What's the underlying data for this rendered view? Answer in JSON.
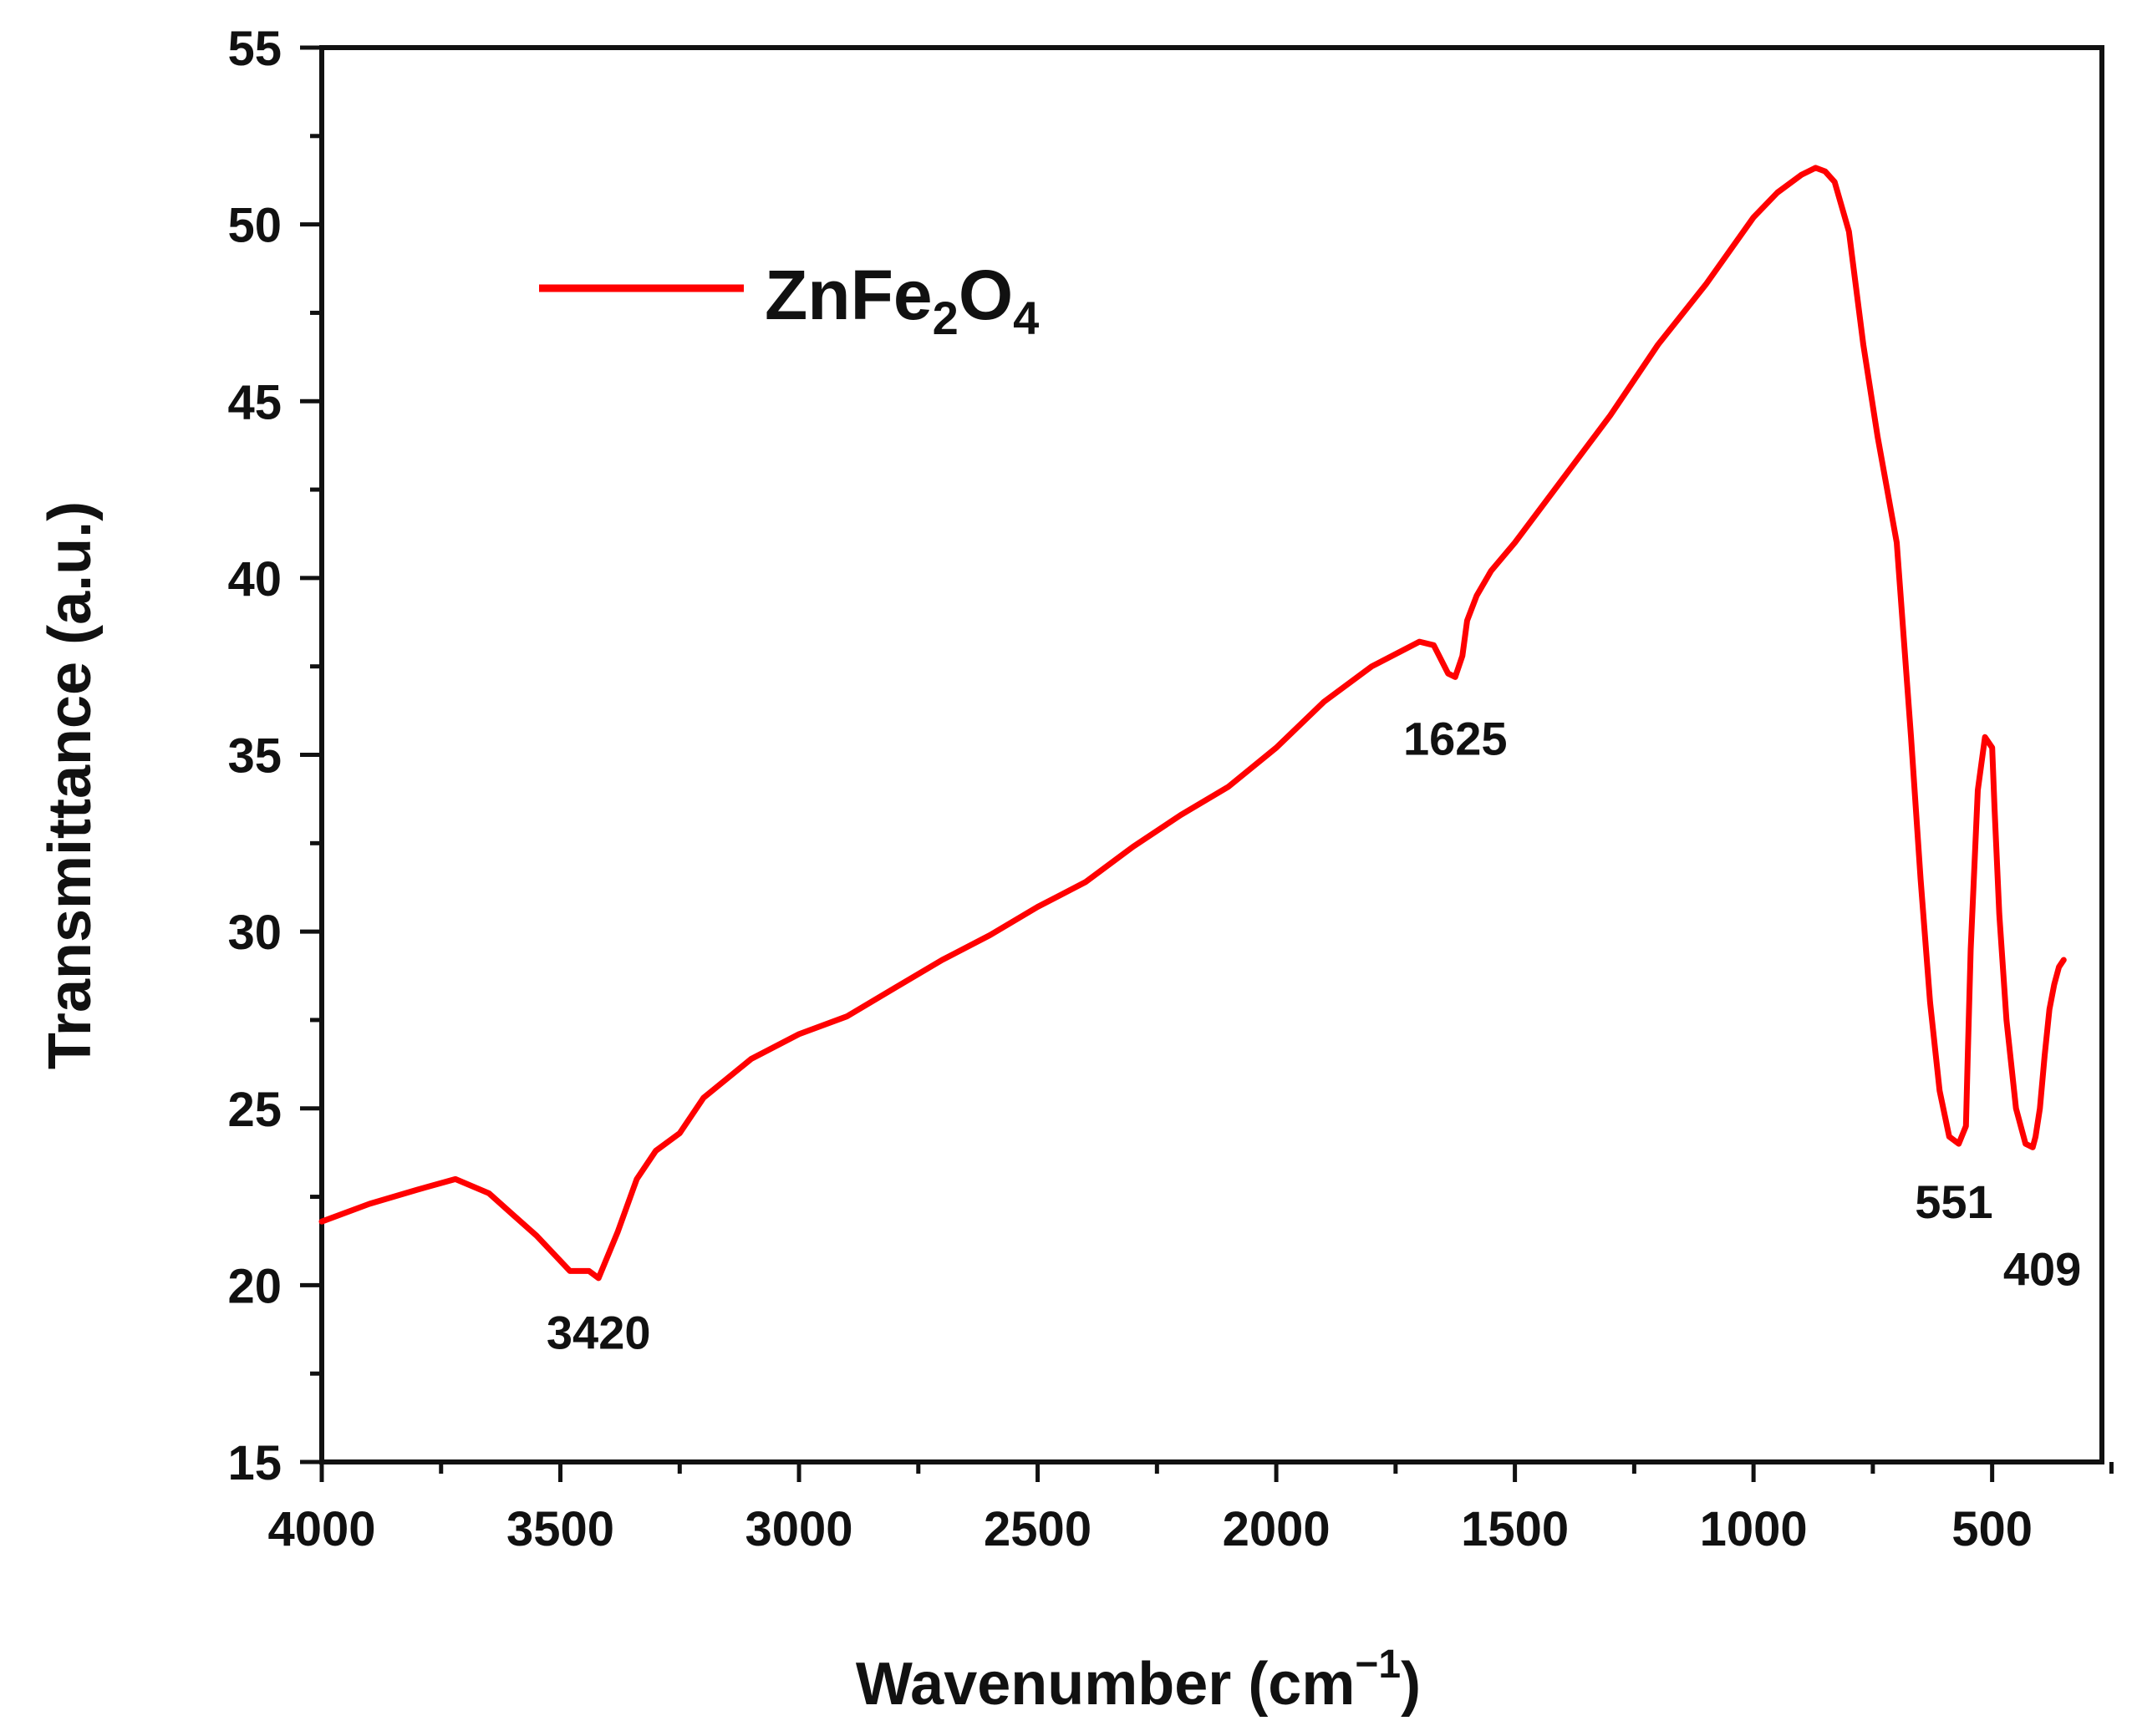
{
  "chart_data": {
    "type": "line",
    "title": "",
    "xlabel": "Wavenumber (cm",
    "xlabel_sup": "−1",
    "xlabel_close": ")",
    "ylabel": "Transmittance (a.u.)",
    "xlim": [
      4000,
      270
    ],
    "ylim": [
      15,
      55
    ],
    "x_ticks": [
      4000,
      3500,
      3000,
      2500,
      2000,
      1500,
      1000,
      500
    ],
    "y_ticks": [
      15,
      20,
      25,
      30,
      35,
      40,
      45,
      50,
      55
    ],
    "x_tick_labels": [
      "4000",
      "3500",
      "3000",
      "2500",
      "2000",
      "1500",
      "1000",
      "500"
    ],
    "y_tick_labels": [
      "15",
      "20",
      "25",
      "30",
      "35",
      "40",
      "45",
      "50",
      "55"
    ],
    "legend": {
      "position": "top-left",
      "label_main": "ZnFe",
      "label_sub1": "2",
      "label_mid": "O",
      "label_sub2": "4",
      "color": "#ff0000"
    },
    "series": [
      {
        "name": "ZnFe2O4",
        "color": "#ff0000",
        "x": [
          4000,
          3900,
          3800,
          3720,
          3650,
          3600,
          3550,
          3480,
          3440,
          3420,
          3380,
          3340,
          3300,
          3250,
          3200,
          3100,
          3000,
          2900,
          2800,
          2700,
          2600,
          2500,
          2400,
          2300,
          2200,
          2100,
          2000,
          1900,
          1800,
          1700,
          1670,
          1640,
          1625,
          1610,
          1600,
          1580,
          1550,
          1500,
          1400,
          1300,
          1200,
          1100,
          1000,
          950,
          900,
          870,
          850,
          830,
          800,
          770,
          740,
          700,
          670,
          650,
          630,
          610,
          590,
          570,
          555,
          551,
          545,
          530,
          515,
          500,
          495,
          485,
          470,
          450,
          430,
          415,
          409,
          400,
          390,
          380,
          370,
          360,
          350
        ],
        "y": [
          21.8,
          22.3,
          22.7,
          23.0,
          22.6,
          22.0,
          21.4,
          20.4,
          20.4,
          20.2,
          21.5,
          23.0,
          23.8,
          24.3,
          25.3,
          26.4,
          27.1,
          27.6,
          28.4,
          29.2,
          29.9,
          30.7,
          31.4,
          32.4,
          33.3,
          34.1,
          35.2,
          36.5,
          37.5,
          38.2,
          38.1,
          37.3,
          37.2,
          37.8,
          38.8,
          39.5,
          40.2,
          41.0,
          42.8,
          44.6,
          46.6,
          48.3,
          50.2,
          50.9,
          51.4,
          51.6,
          51.5,
          51.2,
          49.8,
          46.6,
          44.0,
          41.0,
          35.5,
          31.5,
          28.0,
          25.5,
          24.2,
          24.0,
          24.5,
          26.5,
          29.5,
          34.0,
          35.5,
          35.2,
          33.5,
          30.5,
          27.5,
          25.0,
          24.0,
          23.9,
          24.2,
          25.0,
          26.5,
          27.8,
          28.5,
          29.0,
          29.2
        ]
      }
    ],
    "annotations": [
      {
        "text": "3420",
        "x": 3420,
        "y": 18.2
      },
      {
        "text": "1625",
        "x": 1625,
        "y": 35.0
      },
      {
        "text": "551",
        "x": 580,
        "y": 21.9
      },
      {
        "text": "409",
        "x": 395,
        "y": 20.0
      }
    ]
  }
}
